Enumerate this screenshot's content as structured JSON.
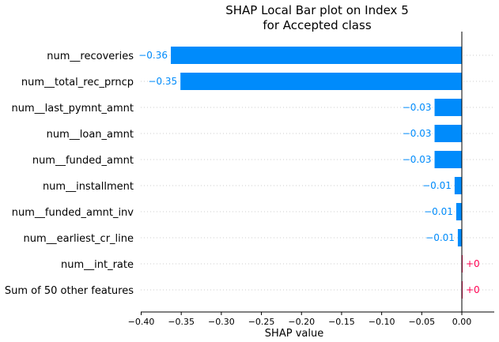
{
  "chart_data": {
    "type": "bar",
    "orientation": "horizontal",
    "title": [
      "SHAP Local Bar plot on Index 5",
      "for Accepted class"
    ],
    "xlabel": "SHAP value",
    "ylabel": "",
    "xlim": [
      -0.4,
      0.04
    ],
    "xticks": [
      -0.4,
      -0.35,
      -0.3,
      -0.25,
      -0.2,
      -0.15,
      -0.1,
      -0.05,
      0.0
    ],
    "xtick_labels": [
      "−0.40",
      "−0.35",
      "−0.30",
      "−0.25",
      "−0.20",
      "−0.15",
      "−0.10",
      "−0.05",
      "0.00"
    ],
    "grid": "horizontal dotted",
    "legend": "none",
    "colors": {
      "negative": "#008bfb",
      "positive": "#ff0051"
    },
    "categories": [
      "num__recoveries",
      "num__total_rec_prncp",
      "num__last_pymnt_amnt",
      "num__loan_amnt",
      "num__funded_amnt",
      "num__installment",
      "num__funded_amnt_inv",
      "num__earliest_cr_line",
      "num__int_rate",
      "Sum of 50 other features"
    ],
    "values": [
      -0.363,
      -0.351,
      -0.034,
      -0.034,
      -0.034,
      -0.009,
      -0.007,
      -0.005,
      0.0,
      0.0
    ],
    "value_labels": [
      "−0.36",
      "−0.35",
      "−0.03",
      "−0.03",
      "−0.03",
      "−0.01",
      "−0.01",
      "−0.01",
      "+0",
      "+0"
    ]
  }
}
